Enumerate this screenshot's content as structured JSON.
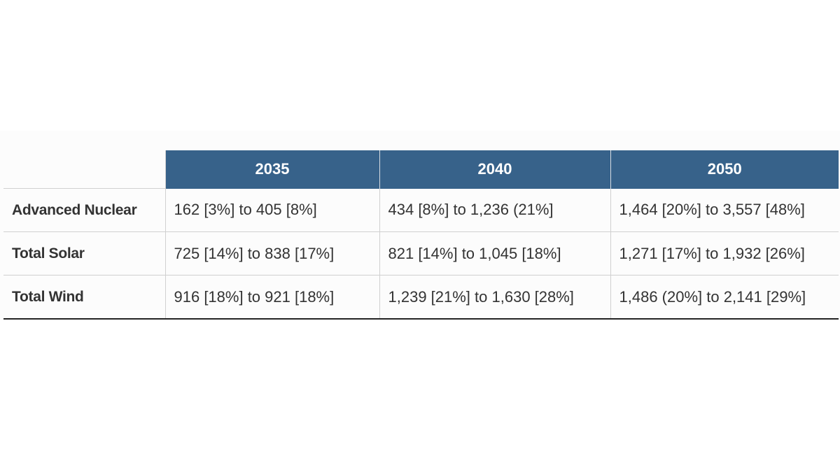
{
  "table": {
    "columns": [
      "",
      "2035",
      "2040",
      "2050"
    ],
    "rows": [
      {
        "label": "Advanced Nuclear",
        "cells": [
          "162 [3%] to 405 [8%]",
          "434 [8%] to 1,236 (21%]",
          "1,464 [20%] to 3,557 [48%]"
        ]
      },
      {
        "label": "Total Solar",
        "cells": [
          "725 [14%] to 838 [17%]",
          "821 [14%] to 1,045 [18%]",
          "1,271 [17%] to 1,932 [26%]"
        ]
      },
      {
        "label": "Total Wind",
        "cells": [
          "916 [18%] to 921 [18%]",
          "1,239 [21%] to 1,630 [28%]",
          "1,486 (20%] to 2,141 [29%]"
        ]
      }
    ]
  },
  "colors": {
    "header_bg": "#37628a",
    "header_text": "#ffffff",
    "body_text": "#333333",
    "grid": "#d0d0d0"
  }
}
